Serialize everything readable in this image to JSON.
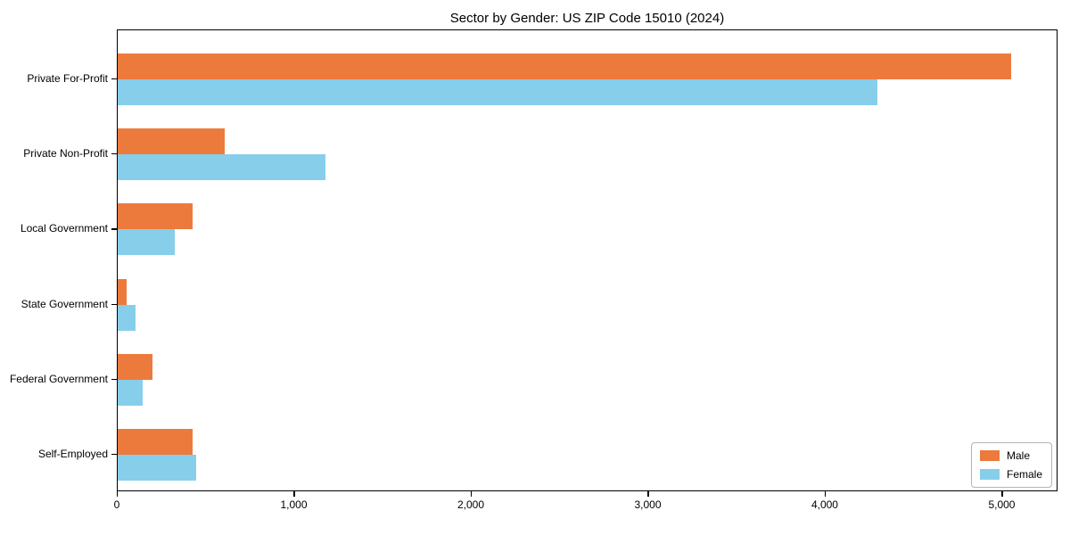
{
  "title": "Sector by Gender: US ZIP Code 15010 (2024)",
  "colors": {
    "male": "#ec7a3d",
    "female": "#87ceeb",
    "axis": "#000000",
    "background": "#ffffff",
    "legend_border": "#b3b3b3"
  },
  "chart_data": {
    "type": "bar",
    "orientation": "horizontal",
    "title": "Sector by Gender: US ZIP Code 15010 (2024)",
    "xlabel": "",
    "ylabel": "",
    "categories": [
      "Private For-Profit",
      "Private Non-Profit",
      "Local Government",
      "State Government",
      "Federal Government",
      "Self-Employed"
    ],
    "series": [
      {
        "name": "Male",
        "color": "#ec7a3d",
        "values": [
          5050,
          605,
          425,
          50,
          195,
          425
        ]
      },
      {
        "name": "Female",
        "color": "#87ceeb",
        "values": [
          4290,
          1175,
          320,
          100,
          140,
          445
        ]
      }
    ],
    "xlim": [
      0,
      5315
    ],
    "x_ticks": [
      0,
      1000,
      2000,
      3000,
      4000,
      5000
    ],
    "x_tick_labels": [
      "0",
      "1,000",
      "2,000",
      "3,000",
      "4,000",
      "5,000"
    ],
    "grid": false,
    "legend_position": "lower right"
  }
}
